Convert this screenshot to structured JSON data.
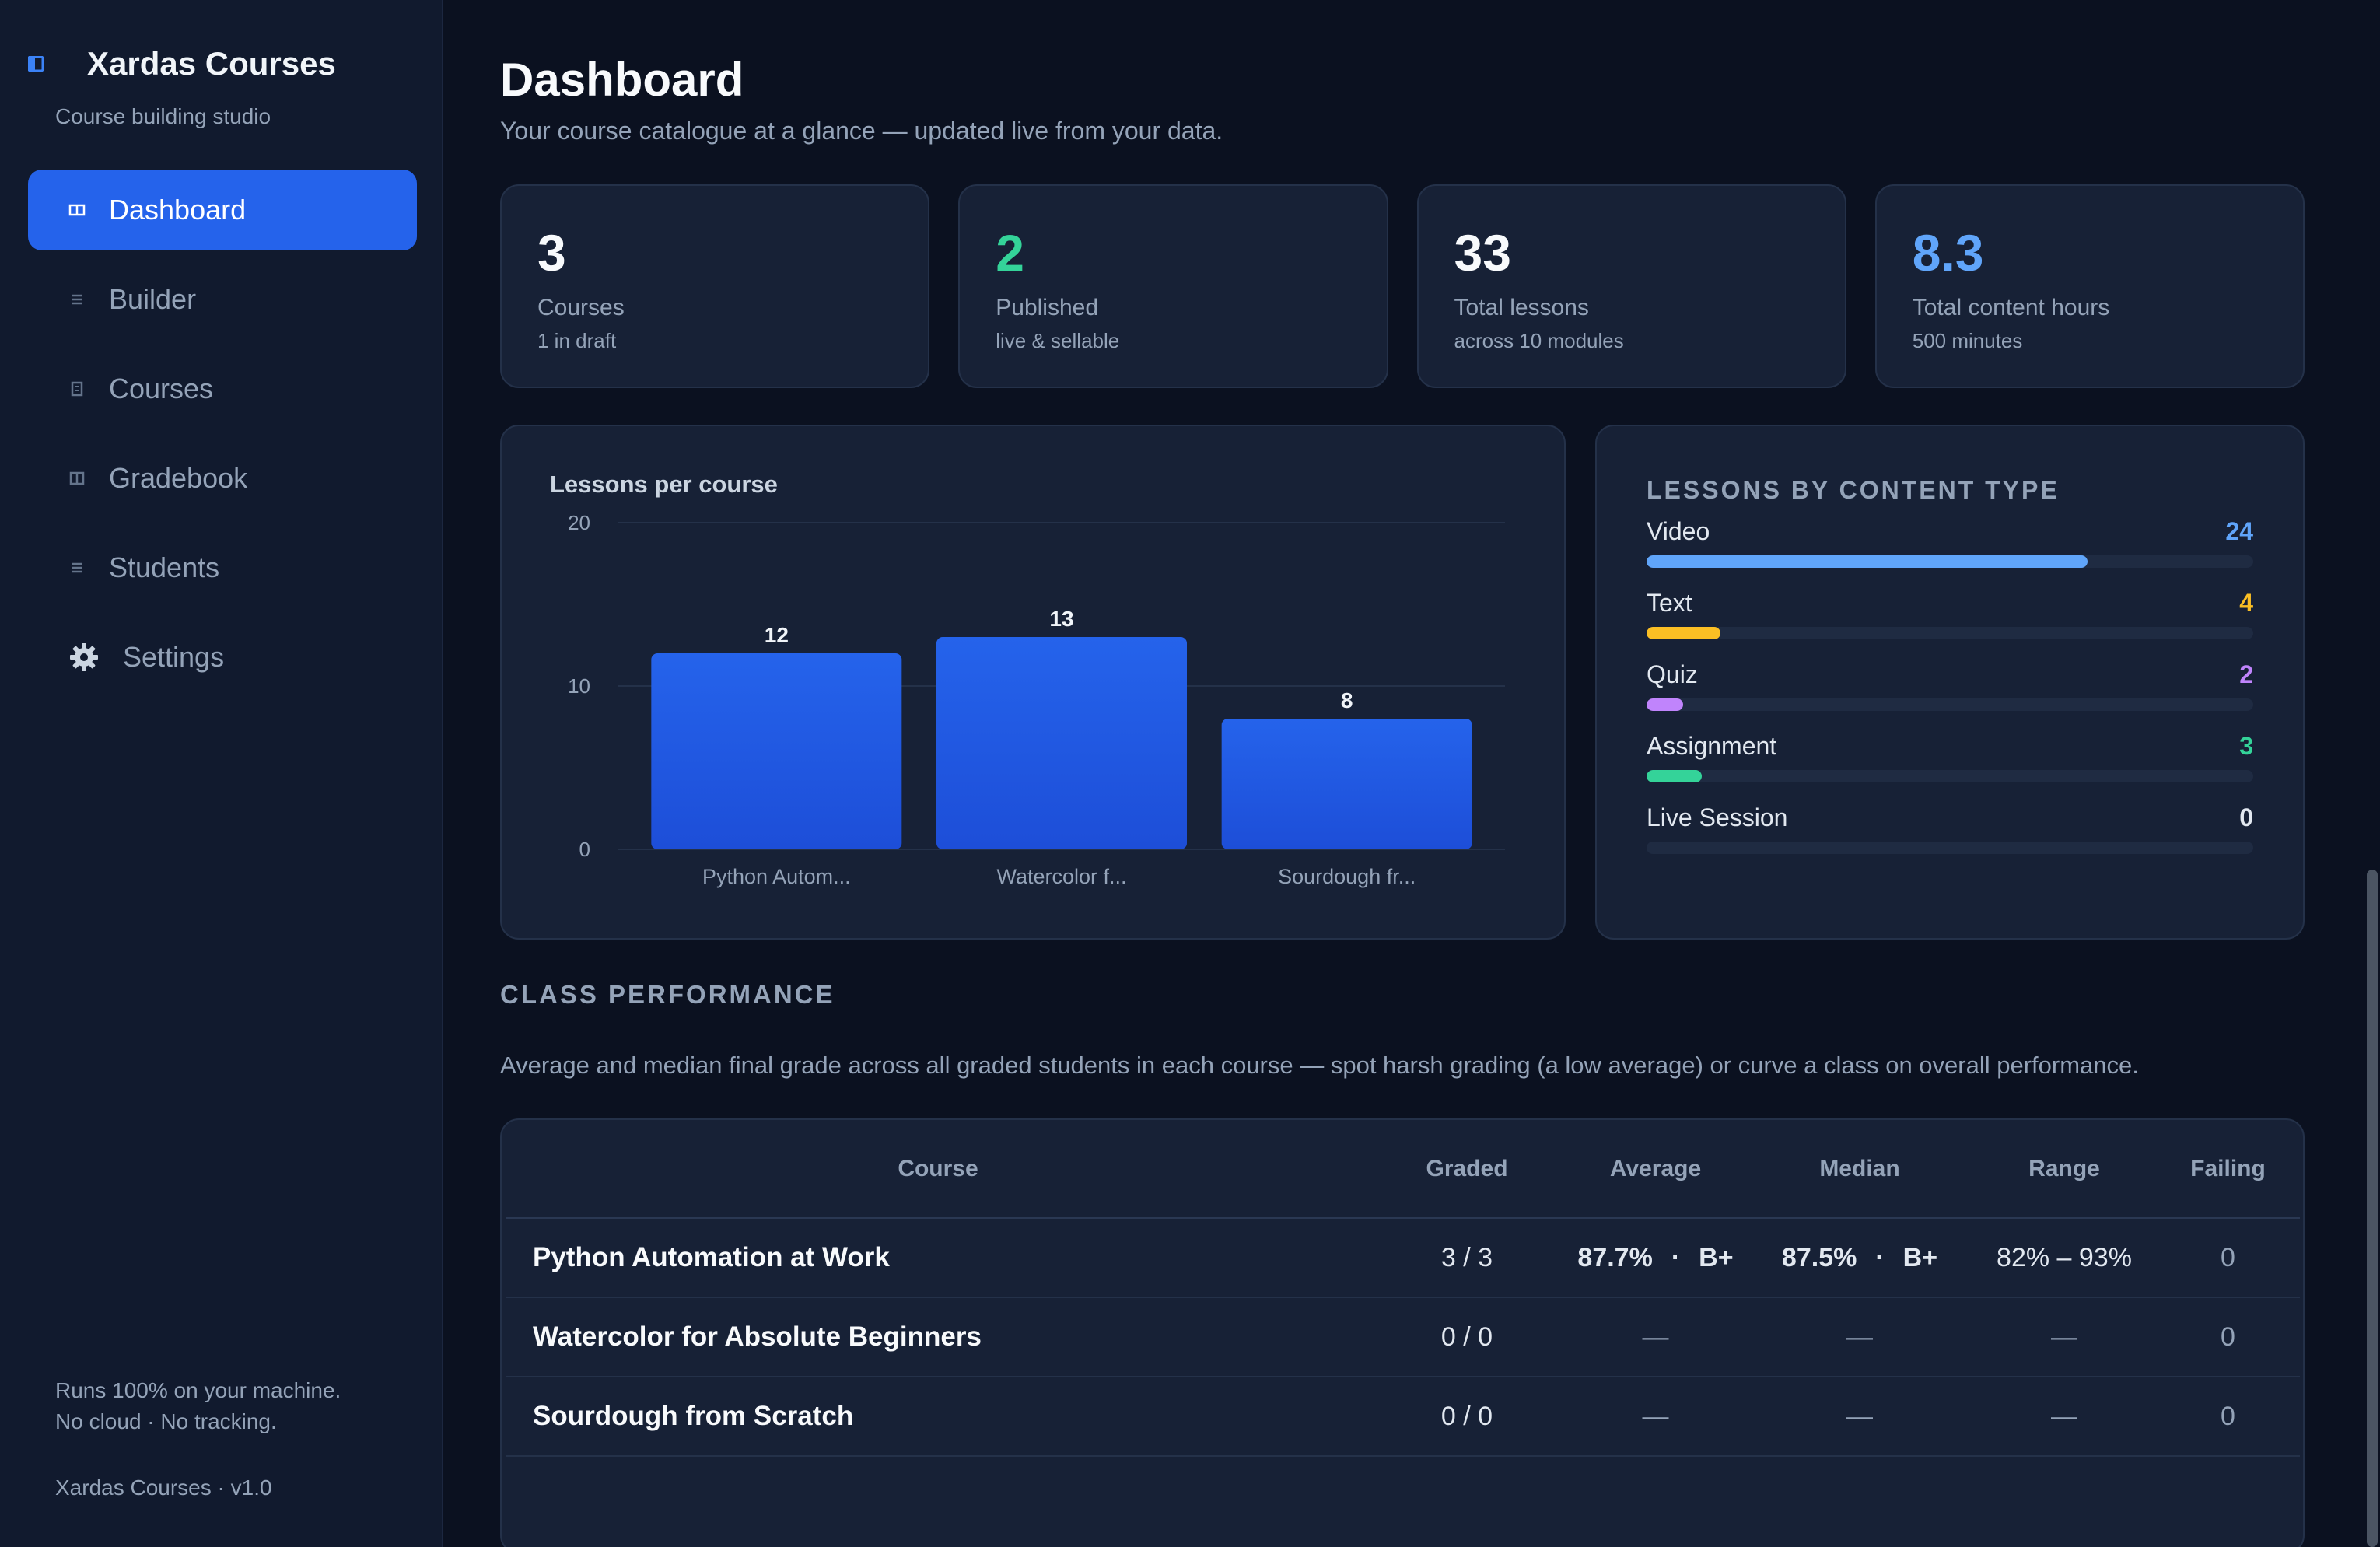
{
  "app": {
    "title": "Xardas Courses",
    "subtitle": "Course building studio"
  },
  "sidebar": {
    "items": [
      {
        "label": "Dashboard",
        "icon": "dashboard-icon",
        "active": true
      },
      {
        "label": "Builder",
        "icon": "builder-icon"
      },
      {
        "label": "Courses",
        "icon": "courses-icon"
      },
      {
        "label": "Gradebook",
        "icon": "gradebook-icon"
      },
      {
        "label": "Students",
        "icon": "students-icon"
      },
      {
        "label": "Settings",
        "icon": "gear-icon"
      }
    ],
    "footer_line1": "Runs 100% on your machine.",
    "footer_line2": "No cloud · No tracking.",
    "version": "Xardas Courses · v1.0"
  },
  "header": {
    "title": "Dashboard",
    "subtitle": "Your course catalogue at a glance — updated live from your data."
  },
  "stats": [
    {
      "value": "3",
      "label": "Courses",
      "note": "1 in draft",
      "color": "#f8fafc"
    },
    {
      "value": "2",
      "label": "Published",
      "note": "live & sellable",
      "color": "#34d399"
    },
    {
      "value": "33",
      "label": "Total lessons",
      "note": "across 10 modules",
      "color": "#f8fafc"
    },
    {
      "value": "8.3",
      "label": "Total content hours",
      "note": "500 minutes",
      "color": "#60a5fa"
    }
  ],
  "chart_data": {
    "type": "bar",
    "title": "Lessons per course",
    "categories": [
      "Python Autom...",
      "Watercolor f...",
      "Sourdough fr..."
    ],
    "values": [
      12,
      13,
      8
    ],
    "yticks": [
      0,
      10,
      20
    ],
    "ylim": [
      0,
      20
    ],
    "grid": true,
    "bar_color": "#2563eb"
  },
  "content_types": {
    "title": "LESSONS BY CONTENT TYPE",
    "max": 33,
    "items": [
      {
        "label": "Video",
        "count": 24,
        "color": "#60a5fa"
      },
      {
        "label": "Text",
        "count": 4,
        "color": "#fbbf24"
      },
      {
        "label": "Quiz",
        "count": 2,
        "color": "#c084fc"
      },
      {
        "label": "Assignment",
        "count": 3,
        "color": "#34d399"
      },
      {
        "label": "Live Session",
        "count": 0,
        "color": "#e2e8f0"
      }
    ]
  },
  "performance": {
    "title": "CLASS PERFORMANCE",
    "subtitle": "Average and median final grade across all graded students in each course — spot harsh grading (a low average) or curve a class on overall performance.",
    "columns": [
      "Course",
      "Graded",
      "Average",
      "Median",
      "Range",
      "Failing"
    ],
    "rows": [
      {
        "course": "Python Automation at Work",
        "graded": "3 / 3",
        "average": "87.7%",
        "average_letter": "B+",
        "median": "87.5%",
        "median_letter": "B+",
        "range": "82% – 93%",
        "failing": "0"
      },
      {
        "course": "Watercolor for Absolute Beginners",
        "graded": "0 / 0",
        "average": "—",
        "median": "—",
        "range": "—",
        "failing": "0"
      },
      {
        "course": "Sourdough from Scratch",
        "graded": "0 / 0",
        "average": "—",
        "median": "—",
        "range": "—",
        "failing": "0"
      }
    ]
  }
}
